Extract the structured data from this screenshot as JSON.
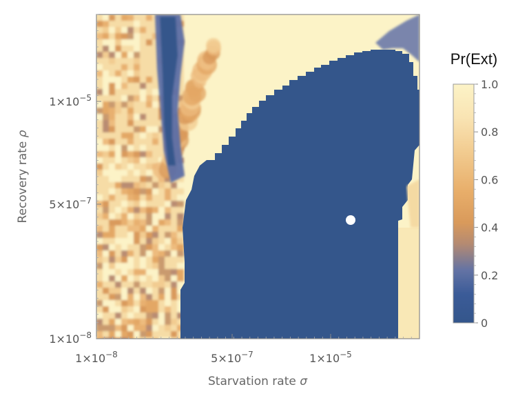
{
  "chart_data": {
    "type": "heatmap",
    "x_axis": {
      "label": "Starvation rate",
      "symbol": "σ",
      "scale": "log",
      "range": [
        1e-08,
        0.0001
      ],
      "ticks": [
        {
          "value": 1e-08,
          "mantissa": "1.",
          "exp": "−8"
        },
        {
          "value": 5e-07,
          "mantissa": "5.",
          "exp": "−7"
        },
        {
          "value": 1e-05,
          "mantissa": "1.",
          "exp": "−5"
        }
      ]
    },
    "y_axis": {
      "label": "Recovery rate",
      "symbol": "ρ",
      "scale": "log",
      "range": [
        1e-08,
        0.0001
      ],
      "ticks": [
        {
          "value": 1e-08,
          "mantissa": "1.",
          "exp": "−8"
        },
        {
          "value": 5e-07,
          "mantissa": "5.",
          "exp": "−7"
        },
        {
          "value": 1e-05,
          "mantissa": "1.",
          "exp": "−5"
        }
      ]
    },
    "colorbar": {
      "title": "Pr(Ext)",
      "range": [
        0,
        1
      ],
      "ticks": [
        "0",
        "0.2",
        "0.4",
        "0.6",
        "0.8",
        "1.0"
      ],
      "colors": [
        "#34568B",
        "#E3A15C",
        "#FCF2C3"
      ]
    },
    "regions_description": "Low extinction probability (dark blue) in large lower-right region; high extinction (light cream) elsewhere with mottled orange bands on the left",
    "highlight_point": {
      "x": 1.5e-05,
      "y": 2.5e-07
    }
  }
}
